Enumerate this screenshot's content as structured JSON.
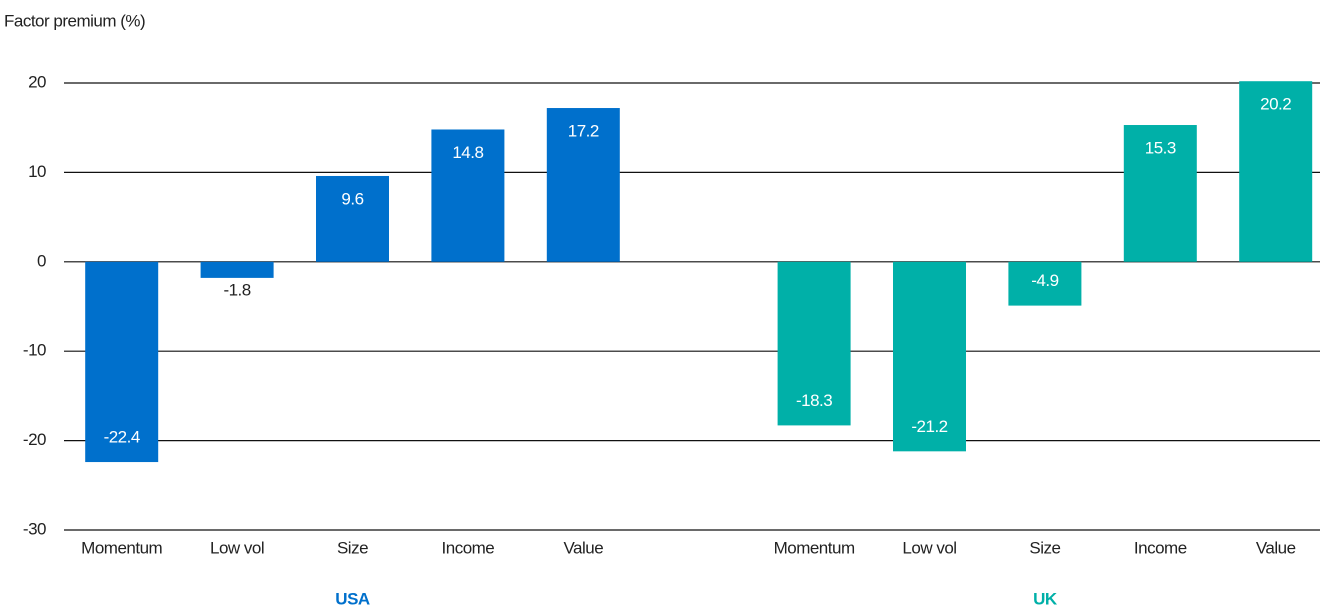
{
  "chart_data": {
    "type": "bar",
    "y_label": "Factor premium (%)",
    "series": [
      {
        "name": "USA",
        "color": "#0070cc",
        "categories": [
          "Momentum",
          "Low vol",
          "Size",
          "Income",
          "Value"
        ],
        "values": [
          -22.4,
          -1.8,
          9.6,
          14.8,
          17.2
        ]
      },
      {
        "name": "UK",
        "color": "#00b0a8",
        "categories": [
          "Momentum",
          "Low vol",
          "Size",
          "Income",
          "Value"
        ],
        "values": [
          -18.3,
          -21.2,
          -4.9,
          15.3,
          20.2
        ]
      }
    ],
    "ylim": [
      -30,
      20
    ],
    "yticks": [
      -30,
      -20,
      -10,
      0,
      10,
      20
    ],
    "grid": true
  }
}
